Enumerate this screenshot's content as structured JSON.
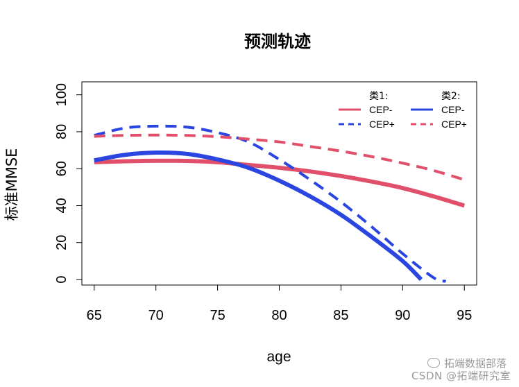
{
  "chart_data": {
    "type": "line",
    "title": "预测轨迹",
    "xlabel": "age",
    "ylabel": "标准MMSE",
    "xlim": [
      64,
      96
    ],
    "ylim": [
      -3,
      107
    ],
    "x_ticks": [
      65,
      70,
      75,
      80,
      85,
      90,
      95
    ],
    "y_ticks": [
      0,
      20,
      40,
      60,
      80,
      100
    ],
    "legend_position": "top-right",
    "legend": {
      "groups": [
        {
          "heading": "类1:",
          "entries": [
            {
              "label": "CEP-",
              "color": "#e0506a",
              "style": "solid"
            },
            {
              "label": "CEP+",
              "color": "#2a45e0",
              "style": "dashed"
            }
          ]
        },
        {
          "heading": "类2:",
          "entries": [
            {
              "label": "CEP-",
              "color": "#2a45e0",
              "style": "solid"
            },
            {
              "label": "CEP+",
              "color": "#e0506a",
              "style": "dashed"
            }
          ]
        }
      ]
    },
    "series": [
      {
        "color": "#e0506a",
        "style": "solid",
        "x": [
          65,
          67.5,
          70,
          72.5,
          75,
          77.5,
          80,
          82.5,
          85,
          87.5,
          90,
          92.5,
          95
        ],
        "y": [
          63.5,
          64.0,
          64.3,
          64.2,
          63.5,
          62.0,
          60.5,
          58.5,
          56.0,
          53.0,
          49.5,
          45.0,
          40.0
        ]
      },
      {
        "color": "#2a45e0",
        "style": "dashed",
        "x": [
          65,
          67.5,
          70,
          72.5,
          75,
          77.5,
          80,
          82.5,
          85,
          87.5,
          90,
          92.5,
          93.5
        ],
        "y": [
          78.0,
          82.0,
          83.0,
          82.5,
          79.5,
          74.5,
          65.0,
          54.0,
          42.0,
          28.5,
          14.0,
          1.0,
          -1.0
        ]
      },
      {
        "color": "#2a45e0",
        "style": "solid",
        "x": [
          65,
          67.5,
          70,
          72.5,
          75,
          77.5,
          80,
          82.5,
          85,
          87.5,
          90,
          91.5
        ],
        "y": [
          64.5,
          67.5,
          68.7,
          68.0,
          65.0,
          60.5,
          53.5,
          45.0,
          35.0,
          23.0,
          10.0,
          0.0
        ]
      },
      {
        "color": "#e0506a",
        "style": "dashed",
        "x": [
          65,
          67.5,
          70,
          72.5,
          75,
          77.5,
          80,
          82.5,
          85,
          87.5,
          90,
          92.5,
          95
        ],
        "y": [
          77.5,
          78.0,
          78.2,
          78.0,
          77.3,
          76.0,
          74.5,
          72.0,
          69.5,
          66.5,
          63.0,
          59.0,
          54.0
        ]
      }
    ]
  },
  "watermark": {
    "line1": "拓端数据部落",
    "line2": "CSDN @拓端研究室"
  }
}
